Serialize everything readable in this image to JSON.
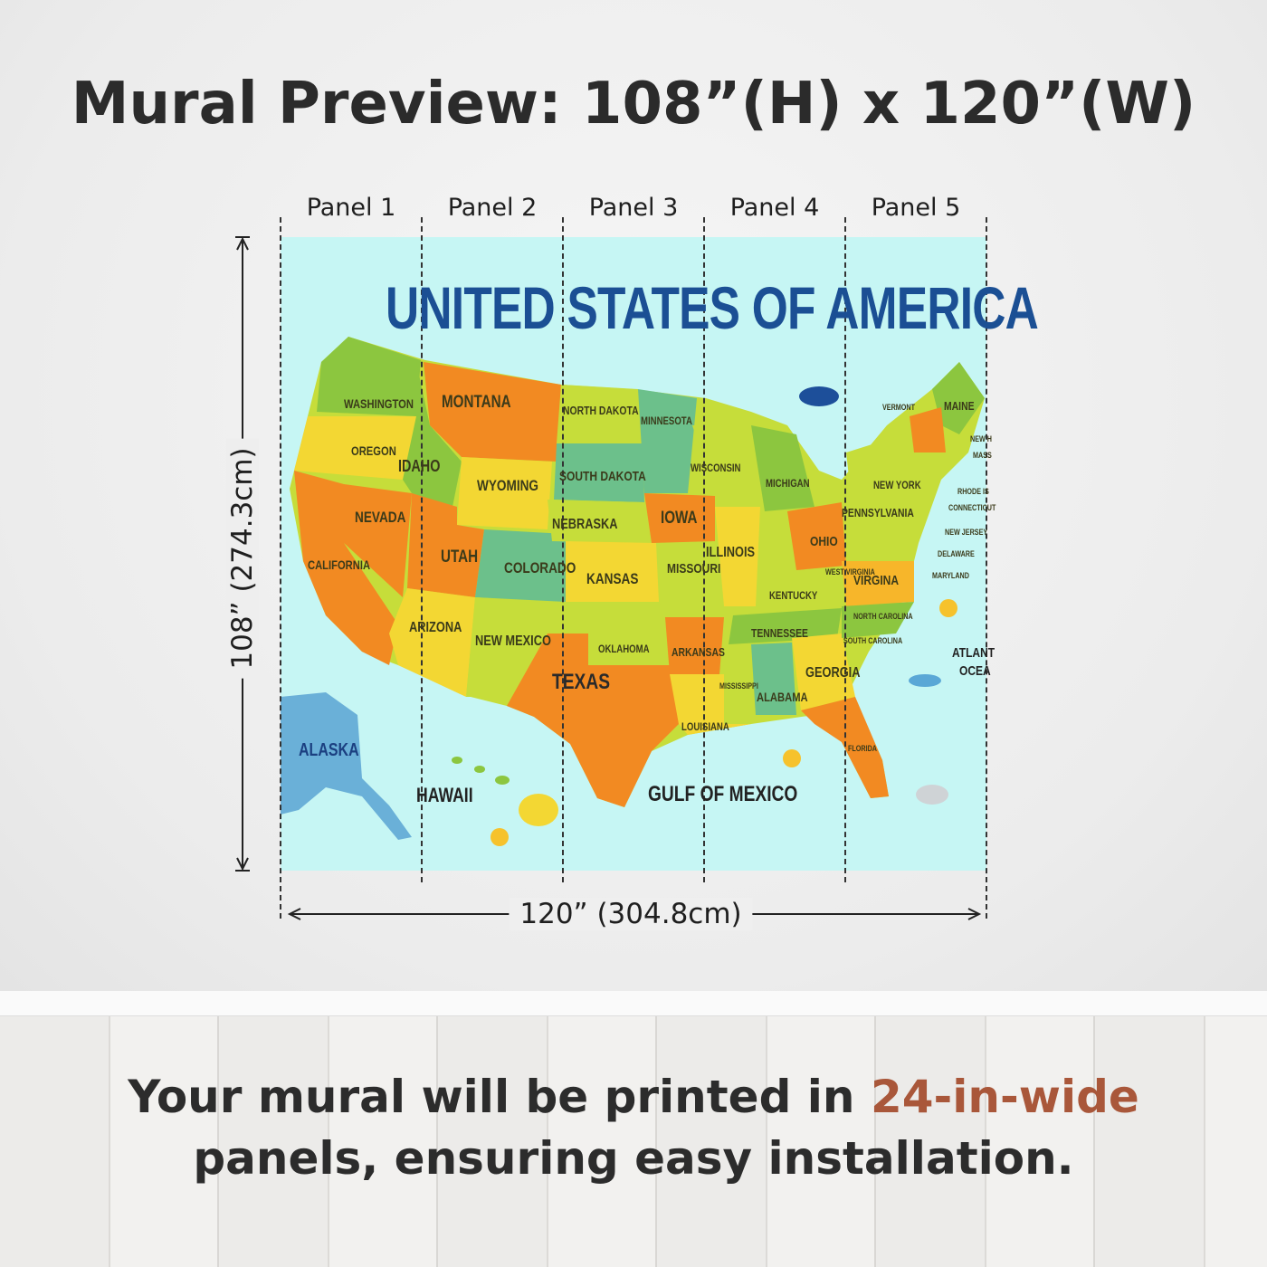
{
  "title": "Mural Preview: 108”(H) x 120”(W)",
  "panels": [
    "Panel 1",
    "Panel 2",
    "Panel 3",
    "Panel 4",
    "Panel 5"
  ],
  "height_label": "108” (274.3cm)",
  "width_label": "120” (304.8cm)",
  "map": {
    "heading": "UNITED STATES OF AMERICA",
    "states": [
      "WASHINGTON",
      "OREGON",
      "CALIFORNIA",
      "NEVADA",
      "IDAHO",
      "MONTANA",
      "WYOMING",
      "UTAH",
      "ARIZONA",
      "COLORADO",
      "NEW MEXICO",
      "NORTH DAKOTA",
      "SOUTH DAKOTA",
      "NEBRASKA",
      "KANSAS",
      "OKLAHOMA",
      "TEXAS",
      "MINNESOTA",
      "IOWA",
      "MISSOURI",
      "ARKANSAS",
      "LOUISIANA",
      "WISCONSIN",
      "ILLINOIS",
      "MICHIGAN",
      "OHIO",
      "KENTUCKY",
      "TENNESSEE",
      "MISSISSIPPI",
      "ALABAMA",
      "GEORGIA",
      "FLORIDA",
      "WEST VIRGINIA",
      "VIRGINA",
      "NORTH CAROLINA",
      "SOUTH CAROLINA",
      "PENNSYLVANIA",
      "NEW YORK",
      "VERMONT",
      "MAINE",
      "NEW H",
      "MASS",
      "RHODE IS",
      "CONNECTICUT",
      "NEW JERSEY",
      "DELAWARE",
      "MARYLAND",
      "ALASKA",
      "HAWAII"
    ],
    "water": [
      "GULF OF MEXICO",
      "ATLANT",
      "OCEA"
    ],
    "colors": {
      "water": "#c6f6f4",
      "heading": "#1b4f94",
      "orange": "#f28a22",
      "yellow": "#f3d733",
      "green": "#8cc63f",
      "teal": "#6cc08b",
      "lime": "#c6dd3a"
    }
  },
  "footer": {
    "line1_prefix": "Your mural will be printed in ",
    "line1_accent": "24-in-wide",
    "line2": "panels, ensuring easy installation.",
    "accent_color": "#a9573a"
  }
}
